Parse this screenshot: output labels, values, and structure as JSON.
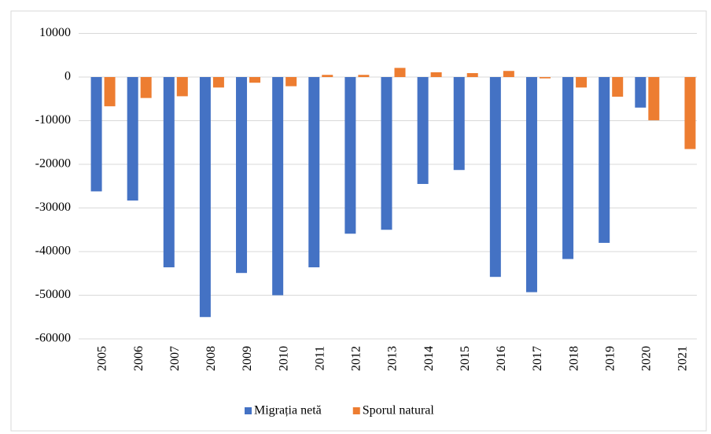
{
  "chart_data": {
    "type": "bar",
    "categories": [
      "2005",
      "2006",
      "2007",
      "2008",
      "2009",
      "2010",
      "2011",
      "2012",
      "2013",
      "2014",
      "2015",
      "2016",
      "2017",
      "2018",
      "2019",
      "2020",
      "2021"
    ],
    "series": [
      {
        "name": "Migrația netă",
        "color": "#4472c4",
        "values": [
          -26200,
          -28300,
          -43600,
          -55000,
          -44900,
          -50000,
          -43600,
          -35900,
          -35000,
          -24500,
          -21300,
          -45800,
          -49300,
          -41700,
          -38000,
          -7000,
          null
        ]
      },
      {
        "name": "Sporul natural",
        "color": "#ed7d31",
        "values": [
          -6700,
          -4800,
          -4400,
          -2400,
          -1300,
          -2100,
          500,
          500,
          2100,
          1100,
          900,
          1400,
          -300,
          -2400,
          -4500,
          -9900,
          -16500
        ]
      }
    ],
    "ylim": [
      -60000,
      10000
    ],
    "yticks": [
      10000,
      0,
      -10000,
      -20000,
      -30000,
      -40000,
      -50000,
      -60000
    ],
    "grid": true,
    "legend": "bottom"
  }
}
